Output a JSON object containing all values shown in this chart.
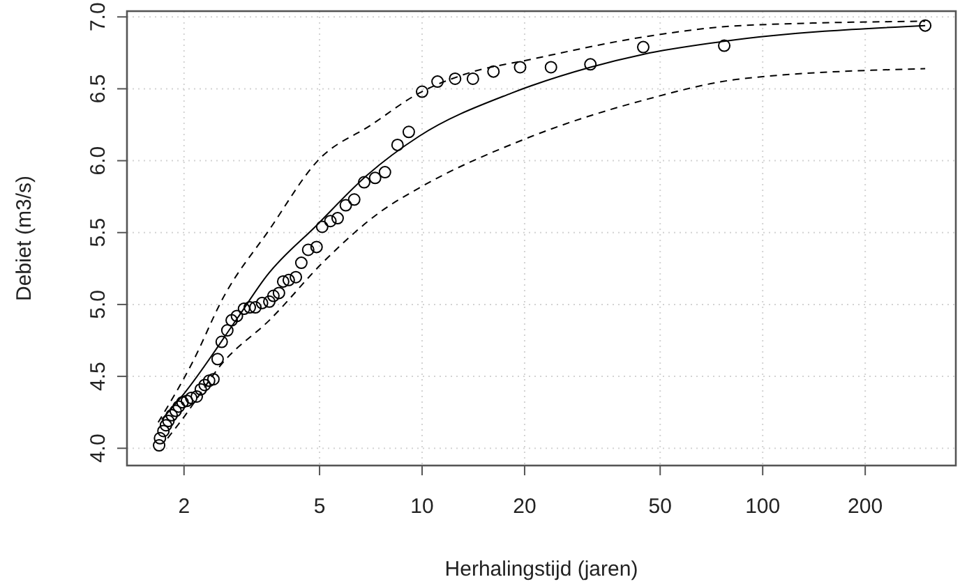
{
  "chart_data": {
    "type": "scatter",
    "xlabel": "Herhalingstijd (jaren)",
    "ylabel": "Debiet (m3/s)",
    "log": "x",
    "grid": true,
    "xlim": [
      1.36,
      369
    ],
    "xticks": [
      2,
      5,
      10,
      20,
      50,
      100,
      200
    ],
    "ylim": [
      3.88,
      7.04
    ],
    "yticks": [
      {
        "value": 4,
        "label": "4.0"
      },
      {
        "value": 4.5,
        "label": "4.5"
      },
      {
        "value": 5,
        "label": "5.0"
      },
      {
        "value": 5.5,
        "label": "5.5"
      },
      {
        "value": 6,
        "label": "6.0"
      },
      {
        "value": 6.5,
        "label": "6.5"
      },
      {
        "value": 7,
        "label": "7.0"
      }
    ],
    "series": [
      {
        "color": "#000000",
        "marker": "circle",
        "x": [
          1.69,
          1.7,
          1.74,
          1.77,
          1.8,
          1.84,
          1.89,
          1.93,
          1.98,
          2.04,
          2.1,
          2.18,
          2.24,
          2.3,
          2.37,
          2.44,
          2.51,
          2.58,
          2.68,
          2.76,
          2.86,
          3.0,
          3.12,
          3.24,
          3.39,
          3.56,
          3.66,
          3.8,
          3.91,
          4.06,
          4.26,
          4.42,
          4.63,
          4.9,
          5.09,
          5.38,
          5.65,
          5.97,
          6.32,
          6.76,
          7.28,
          7.78,
          8.47,
          9.14,
          10.0,
          11.1,
          12.5,
          14.1,
          16.2,
          19.4,
          23.9,
          31.2,
          44.6,
          77.1,
          300
        ],
        "values": [
          4.02,
          4.07,
          4.12,
          4.16,
          4.19,
          4.23,
          4.26,
          4.29,
          4.32,
          4.33,
          4.35,
          4.36,
          4.41,
          4.44,
          4.47,
          4.48,
          4.62,
          4.74,
          4.82,
          4.89,
          4.92,
          4.97,
          4.98,
          4.98,
          5.01,
          5.02,
          5.06,
          5.08,
          5.16,
          5.17,
          5.19,
          5.29,
          5.38,
          5.4,
          5.54,
          5.58,
          5.6,
          5.69,
          5.73,
          5.85,
          5.88,
          5.92,
          6.11,
          6.2,
          6.48,
          6.55,
          6.57,
          6.57,
          6.62,
          6.65,
          6.65,
          6.67,
          6.79,
          6.8,
          6.94
        ]
      },
      {
        "type": "line",
        "color": "#000000",
        "marker": "none",
        "line_style": "solid",
        "x": [
          1.72,
          2.0,
          2.86,
          3.5,
          4.9,
          6.9,
          9.8,
          18.3,
          31.2,
          44.6,
          77,
          300
        ],
        "values": [
          4.2,
          4.38,
          4.9,
          5.2,
          5.55,
          5.9,
          6.17,
          6.47,
          6.65,
          6.74,
          6.83,
          6.94
        ]
      },
      {
        "type": "line",
        "color": "#000000",
        "marker": "none",
        "line_style": "dashed",
        "x": [
          1.68,
          2.12,
          2.61,
          3.56,
          4.94,
          7.1,
          9.8,
          13.3,
          21.4,
          44.6,
          87,
          300
        ],
        "values": [
          4.18,
          4.6,
          5.05,
          5.52,
          6.0,
          6.25,
          6.47,
          6.6,
          6.71,
          6.86,
          6.94,
          6.97
        ]
      },
      {
        "type": "line",
        "color": "#000000",
        "marker": "none",
        "line_style": "dashed",
        "x": [
          1.79,
          1.96,
          2.61,
          3.56,
          5.2,
          7.6,
          9.8,
          20,
          44.6,
          87,
          300
        ],
        "values": [
          4.07,
          4.19,
          4.6,
          4.89,
          5.31,
          5.65,
          5.81,
          6.15,
          6.42,
          6.57,
          6.64
        ]
      }
    ]
  }
}
